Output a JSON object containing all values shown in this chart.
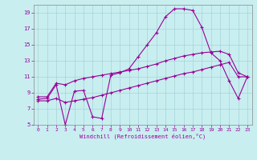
{
  "xlabel": "Windchill (Refroidissement éolien,°C)",
  "bg_color": "#c8eef0",
  "line_color": "#990099",
  "xlim": [
    -0.5,
    23.5
  ],
  "ylim": [
    5,
    20
  ],
  "xticks": [
    0,
    1,
    2,
    3,
    4,
    5,
    6,
    7,
    8,
    9,
    10,
    11,
    12,
    13,
    14,
    15,
    16,
    17,
    18,
    19,
    20,
    21,
    22,
    23
  ],
  "yticks": [
    5,
    7,
    9,
    11,
    13,
    15,
    17,
    19
  ],
  "curve1_x": [
    0,
    1,
    2,
    3,
    4,
    5,
    6,
    7,
    8,
    9,
    10,
    11,
    12,
    13,
    14,
    15,
    16,
    17,
    18,
    19,
    20,
    21,
    22,
    23
  ],
  "curve1_y": [
    8.2,
    8.3,
    10.0,
    5.0,
    9.2,
    9.3,
    6.0,
    5.8,
    11.2,
    11.5,
    12.0,
    13.5,
    15.0,
    16.5,
    18.5,
    19.5,
    19.5,
    19.3,
    17.2,
    14.0,
    13.0,
    10.5,
    8.3,
    11.0
  ],
  "curve2_x": [
    0,
    1,
    2,
    3,
    4,
    5,
    6,
    7,
    8,
    9,
    10,
    11,
    12,
    13,
    14,
    15,
    16,
    17,
    18,
    19,
    20,
    21,
    22,
    23
  ],
  "curve2_y": [
    8.5,
    8.5,
    10.2,
    10.0,
    10.5,
    10.8,
    11.0,
    11.2,
    11.4,
    11.6,
    11.8,
    12.0,
    12.3,
    12.6,
    13.0,
    13.3,
    13.6,
    13.8,
    14.0,
    14.1,
    14.2,
    13.8,
    11.5,
    11.0
  ],
  "curve3_x": [
    0,
    1,
    2,
    3,
    4,
    5,
    6,
    7,
    8,
    9,
    10,
    11,
    12,
    13,
    14,
    15,
    16,
    17,
    18,
    19,
    20,
    21,
    22,
    23
  ],
  "curve3_y": [
    8.0,
    8.0,
    8.3,
    7.8,
    8.0,
    8.2,
    8.4,
    8.7,
    9.0,
    9.3,
    9.6,
    9.9,
    10.2,
    10.5,
    10.8,
    11.1,
    11.4,
    11.6,
    11.9,
    12.2,
    12.5,
    12.8,
    11.0,
    11.0
  ]
}
